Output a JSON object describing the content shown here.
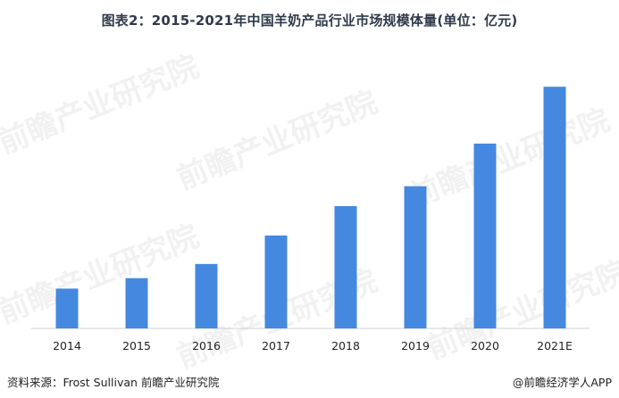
{
  "title": "图表2：2015-2021年中国羊奶产品行业市场规模体量(单位：亿元)",
  "footer": {
    "source": "资料来源：Frost Sullivan 前瞻产业研究院",
    "credit": "@前瞻经济学人APP"
  },
  "watermark": "前瞻产业研究院",
  "colors": {
    "bar": "#4488e0",
    "axis": "#d0d0d0",
    "text": "#222222"
  },
  "chart_data": {
    "type": "bar",
    "title": "图表2：2015-2021年中国羊奶产品行业市场规模体量(单位：亿元)",
    "categories": [
      "2014",
      "2015",
      "2016",
      "2017",
      "2018",
      "2019",
      "2020",
      "2021E"
    ],
    "series": [
      {
        "values": [
          42,
          53,
          68,
          98,
          129,
          150,
          195,
          255
        ]
      }
    ],
    "xlabel": "",
    "ylabel": "",
    "ylim": [
      0,
      290
    ],
    "grid": false,
    "legend": "none"
  }
}
